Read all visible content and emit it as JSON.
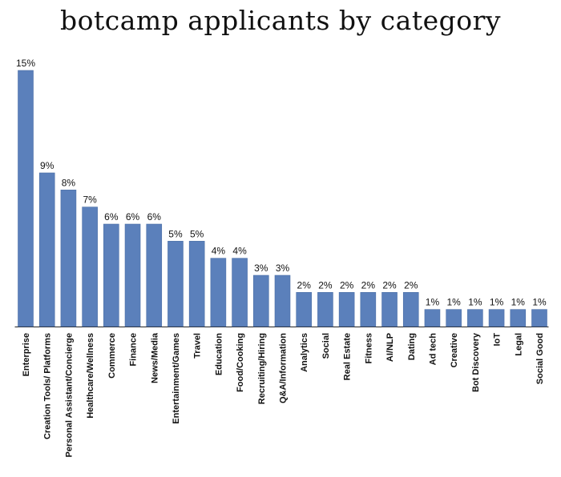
{
  "chart_data": {
    "type": "bar",
    "title": "botcamp applicants by category",
    "xlabel": "",
    "ylabel": "",
    "categories": [
      "Enterprise",
      "Creation Tools/ Platforms",
      "Personal Assistant/Concierge",
      "Healthcare/Wellness",
      "Commerce",
      "Finance",
      "News/Media",
      "Entertainment/Games",
      "Travel",
      "Education",
      "Food/Cooking",
      "Recruiting/Hiring",
      "Q&A/Information",
      "Analytics",
      "Social",
      "Real Estate",
      "Fitness",
      "AI/NLP",
      "Dating",
      "Ad tech",
      "Creative",
      "Bot Discovery",
      "IoT",
      "Legal",
      "Social Good"
    ],
    "values": [
      15,
      9,
      8,
      7,
      6,
      6,
      6,
      5,
      5,
      4,
      4,
      3,
      3,
      2,
      2,
      2,
      2,
      2,
      2,
      1,
      1,
      1,
      1,
      1,
      1
    ],
    "data_labels": [
      "15%",
      "9%",
      "8%",
      "7%",
      "6%",
      "6%",
      "6%",
      "5%",
      "5%",
      "4%",
      "4%",
      "3%",
      "3%",
      "2%",
      "2%",
      "2%",
      "2%",
      "2%",
      "2%",
      "1%",
      "1%",
      "1%",
      "1%",
      "1%",
      "1%"
    ],
    "ylim": [
      0,
      15
    ],
    "grid": false,
    "legend": "none",
    "bar_color": "#5b80bb"
  }
}
